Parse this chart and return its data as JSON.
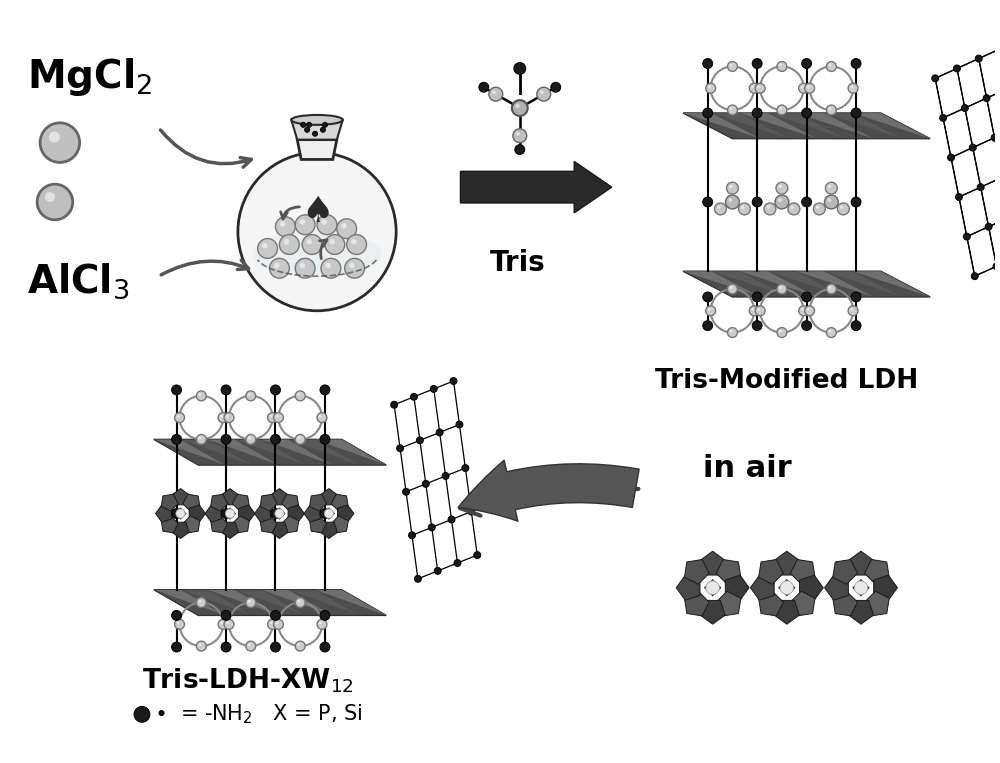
{
  "background_color": "#ffffff",
  "figsize": [
    10.0,
    7.63
  ],
  "dpi": 100,
  "mgcl2_text": "MgCl$_2$",
  "alcl3_text": "AlCl$_3$",
  "tris_text": "Tris",
  "tris_modified_ldh_text": "Tris-Modified LDH",
  "tris_ldh_xw12_text": "Tris-LDH-XW$_{12}$",
  "in_air_text": "in air",
  "legend_dot_text": "$\\bullet$  = -NH$_2$   X = P, Si"
}
